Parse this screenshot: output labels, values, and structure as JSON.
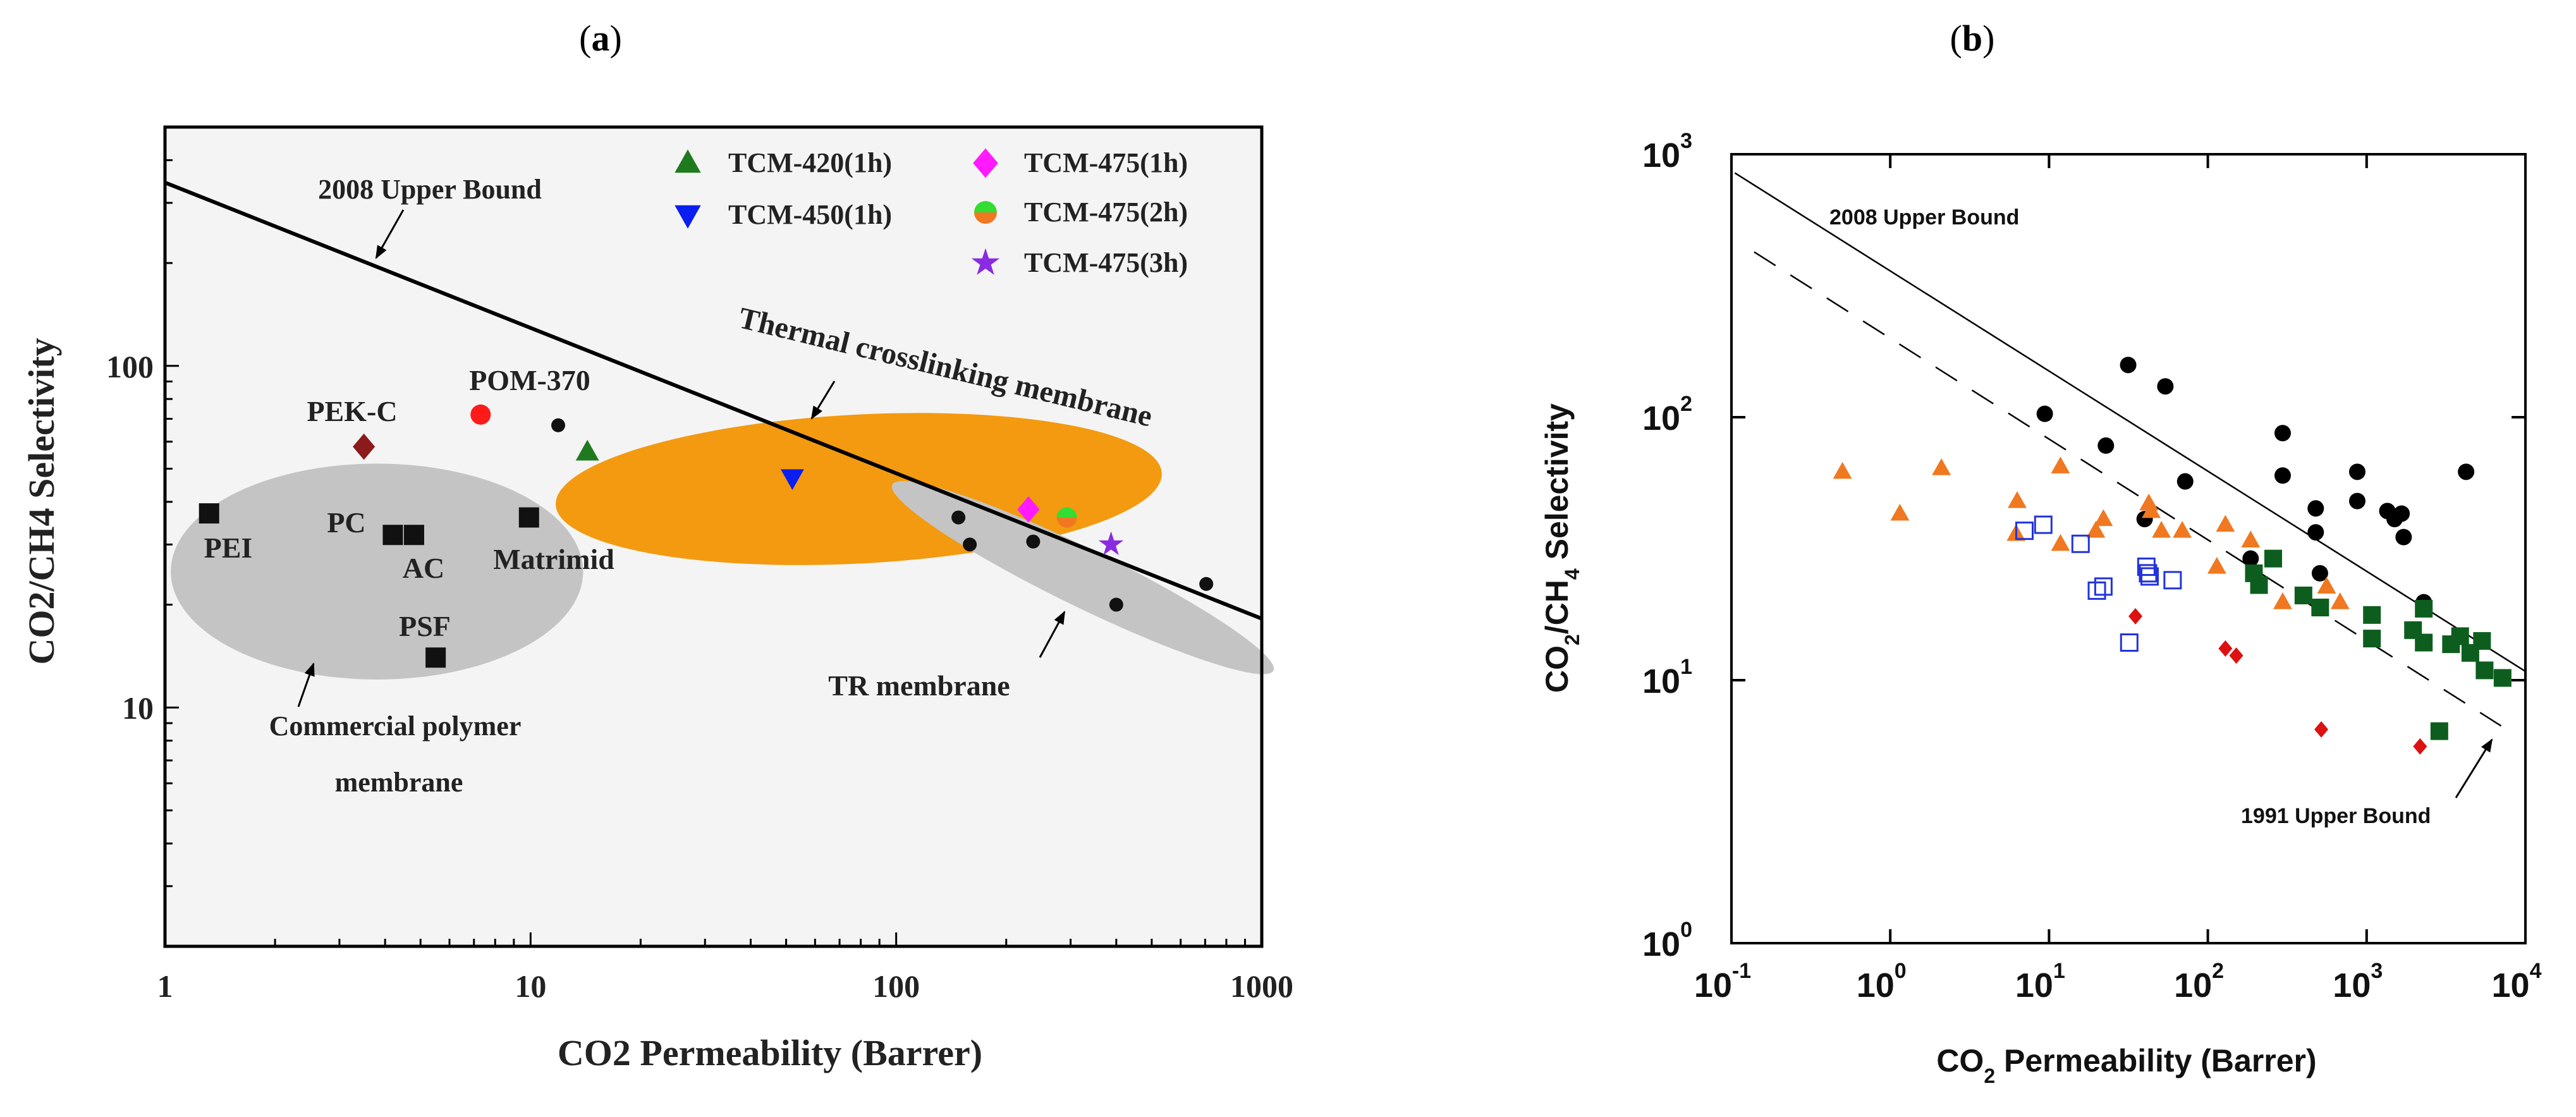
{
  "titles": {
    "a_open": "(",
    "a": "a",
    "a_close": ")",
    "b_open": "(",
    "b": "b",
    "b_close": ")"
  },
  "chart_data": [
    {
      "type": "scatter",
      "panel": "a",
      "xscale": "log",
      "yscale": "log",
      "xlabel": "CO2 Permeability (Barrer)",
      "ylabel": "CO2/CH4 Selectivity",
      "xlim": [
        1,
        1000
      ],
      "ylim": [
        2,
        500
      ],
      "xticks": [
        "1",
        "10",
        "100",
        "1000"
      ],
      "yticks": [
        "10",
        "100"
      ],
      "legend": [
        {
          "label": "TCM-420(1h)",
          "color": "#1f7a1f",
          "marker": "triangle-up"
        },
        {
          "label": "TCM-450(1h)",
          "color": "#0a1ef0",
          "marker": "triangle-down"
        },
        {
          "label": "TCM-475(1h)",
          "color": "#ff1aff",
          "marker": "diamond"
        },
        {
          "label": "TCM-475(2h)",
          "color": "#33dd33",
          "marker": "half-circle"
        },
        {
          "label": "TCM-475(3h)",
          "color": "#8a2be2",
          "marker": "star"
        }
      ],
      "points": [
        {
          "name": "PEI",
          "x": 1.32,
          "y": 37,
          "marker": "square",
          "color": "#111"
        },
        {
          "name": "PC",
          "x": 4.2,
          "y": 32,
          "marker": "square",
          "color": "#111"
        },
        {
          "name": "AC",
          "x": 4.8,
          "y": 32,
          "marker": "square",
          "color": "#111"
        },
        {
          "name": "Matrimid",
          "x": 9.9,
          "y": 36,
          "marker": "square",
          "color": "#111"
        },
        {
          "name": "PSF",
          "x": 5.5,
          "y": 14,
          "marker": "square",
          "color": "#111"
        },
        {
          "name": "PEK-C",
          "x": 3.5,
          "y": 58,
          "marker": "diamond",
          "color": "#8b1a1a"
        },
        {
          "name": "POM-370",
          "x": 7.3,
          "y": 72,
          "marker": "circle",
          "color": "#ff1a1a"
        },
        {
          "name": "other",
          "x": 11.9,
          "y": 67,
          "marker": "circle",
          "color": "#111"
        },
        {
          "name": "TCM-420(1h)",
          "x": 14.3,
          "y": 56,
          "marker": "triangle-up",
          "color": "#1f7a1f"
        },
        {
          "name": "TCM-450(1h)",
          "x": 52,
          "y": 47,
          "marker": "triangle-down",
          "color": "#0a1ef0"
        },
        {
          "name": "TCM-475(1h)",
          "x": 230,
          "y": 38,
          "marker": "diamond",
          "color": "#ff1aff"
        },
        {
          "name": "TCM-475(2h)",
          "x": 293,
          "y": 36,
          "marker": "half-circle",
          "color": "#33dd33"
        },
        {
          "name": "TCM-475(3h)",
          "x": 387,
          "y": 30,
          "marker": "star",
          "color": "#8a2be2"
        },
        {
          "name": "TR",
          "x": 148,
          "y": 36,
          "marker": "circle",
          "color": "#111"
        },
        {
          "name": "TR",
          "x": 159,
          "y": 30,
          "marker": "circle",
          "color": "#111"
        },
        {
          "name": "TR",
          "x": 237,
          "y": 30.6,
          "marker": "circle",
          "color": "#111"
        },
        {
          "name": "TR",
          "x": 400,
          "y": 20,
          "marker": "circle",
          "color": "#111"
        },
        {
          "name": "TR",
          "x": 705,
          "y": 23,
          "marker": "circle",
          "color": "#111"
        }
      ],
      "lines": [
        {
          "name": "2008 Upper Bound",
          "x": [
            1,
            1000
          ],
          "y": [
            344,
            18.2
          ],
          "style": "solid"
        }
      ],
      "regions": [
        {
          "name": "Commercial polymer membrane",
          "cx": 3.8,
          "cy": 25,
          "rx_decades": 0.564,
          "ry_decades": 0.316,
          "color": "#c4c4c4"
        },
        {
          "name": "Thermal crosslinking membrane",
          "cx": 79,
          "cy": 43.6,
          "rx_decades": 0.83,
          "ry_decades": 0.218,
          "color": "#f39a10"
        },
        {
          "name": "TR membrane",
          "cx": 324,
          "cy": 24,
          "rx_decades": 0.58,
          "ry_decades": 0.085,
          "color": "#c4c4c4"
        }
      ],
      "annotations": {
        "upper_bound": "2008 Upper Bound",
        "thermal": "Thermal crosslinking membrane",
        "tr": "TR membrane",
        "commercial1": "Commercial polymer",
        "commercial2": "membrane",
        "pei": "PEI",
        "pc": "PC",
        "ac": "AC",
        "matrimid": "Matrimid",
        "psf": "PSF",
        "pekc": "PEK-C",
        "pom": "POM-370"
      }
    },
    {
      "type": "scatter",
      "panel": "b",
      "xscale": "log",
      "yscale": "log",
      "xlabel_main": "CO",
      "xlabel_sub": "2",
      "xlabel_rest": " Permeability (Barrer)",
      "ylabel_parts": [
        "CO",
        "2",
        "/CH",
        "4",
        " Selectivity"
      ],
      "xlim": [
        0.1,
        10000
      ],
      "ylim": [
        1,
        1000
      ],
      "xticks": [
        {
          "base": "10",
          "exp": "-1"
        },
        {
          "base": "10",
          "exp": "0"
        },
        {
          "base": "10",
          "exp": "1"
        },
        {
          "base": "10",
          "exp": "2"
        },
        {
          "base": "10",
          "exp": "3"
        },
        {
          "base": "10",
          "exp": "4"
        }
      ],
      "yticks": [
        {
          "base": "10",
          "exp": "0"
        },
        {
          "base": "10",
          "exp": "1"
        },
        {
          "base": "10",
          "exp": "2"
        },
        {
          "base": "10",
          "exp": "3"
        }
      ],
      "series": [
        {
          "name": "black circles",
          "marker": "circle",
          "color": "#000",
          "x": [
            9.4,
            31.5,
            54,
            22.8,
            72,
            40,
            186,
            296,
            296,
            478,
            478,
            508,
            873,
            873,
            1350,
            1660,
            1500,
            1710,
            2290,
            4230
          ],
          "y": [
            103,
            158,
            131,
            78,
            57,
            41,
            29,
            87,
            60,
            45,
            36.5,
            25.5,
            62,
            48,
            44,
            43,
            41,
            35,
            19.8,
            62
          ]
        },
        {
          "name": "orange triangles",
          "marker": "triangle-up",
          "color": "#f07820",
          "x": [
            0.5,
            1.15,
            2.1,
            6.3,
            6.2,
            11.8,
            11.8,
            19.7,
            22,
            42.5,
            44,
            51,
            69,
            114,
            129,
            186,
            296,
            560,
            680
          ],
          "y": [
            62,
            43,
            64,
            48,
            36,
            65,
            33,
            37,
            41,
            47,
            44,
            37,
            37,
            27,
            39,
            34,
            19.8,
            22.7,
            19.8
          ]
        },
        {
          "name": "blue open squares",
          "marker": "open-square",
          "color": "#2233dd",
          "x": [
            7.0,
            9.2,
            15.8,
            20,
            22,
            41,
            42,
            43,
            60,
            32
          ],
          "y": [
            37,
            39,
            33,
            21.9,
            22.7,
            27,
            25.5,
            24.8,
            24,
            13.9
          ]
        },
        {
          "name": "red diamonds",
          "marker": "diamond",
          "color": "#dd1111",
          "x": [
            35,
            129,
            151,
            518,
            2170
          ],
          "y": [
            17.5,
            13.2,
            12.4,
            6.5,
            5.6
          ]
        },
        {
          "name": "green squares",
          "marker": "square",
          "color": "#0d5e1e",
          "x": [
            258,
            195,
            210,
            400,
            510,
            1080,
            1080,
            2290,
            1960,
            2290,
            3400,
            3880,
            4500,
            5330,
            5530,
            7180,
            2870
          ],
          "y": [
            29,
            25.5,
            23,
            21,
            18.9,
            17.7,
            14.4,
            18.7,
            15.5,
            13.9,
            13.7,
            14.7,
            12.7,
            14.1,
            10.9,
            10.2,
            6.4
          ]
        }
      ],
      "lines": [
        {
          "name": "2008 Upper Bound",
          "x": [
            0.105,
            10000
          ],
          "y": [
            849,
            10.8
          ],
          "style": "solid"
        },
        {
          "name": "1991 Upper Bound",
          "x": [
            0.139,
            7030
          ],
          "y": [
            425,
            6.7
          ],
          "style": "dashed"
        }
      ],
      "annotations": {
        "ub2008": "2008 Upper Bound",
        "ub1991": "1991 Upper Bound"
      }
    }
  ]
}
